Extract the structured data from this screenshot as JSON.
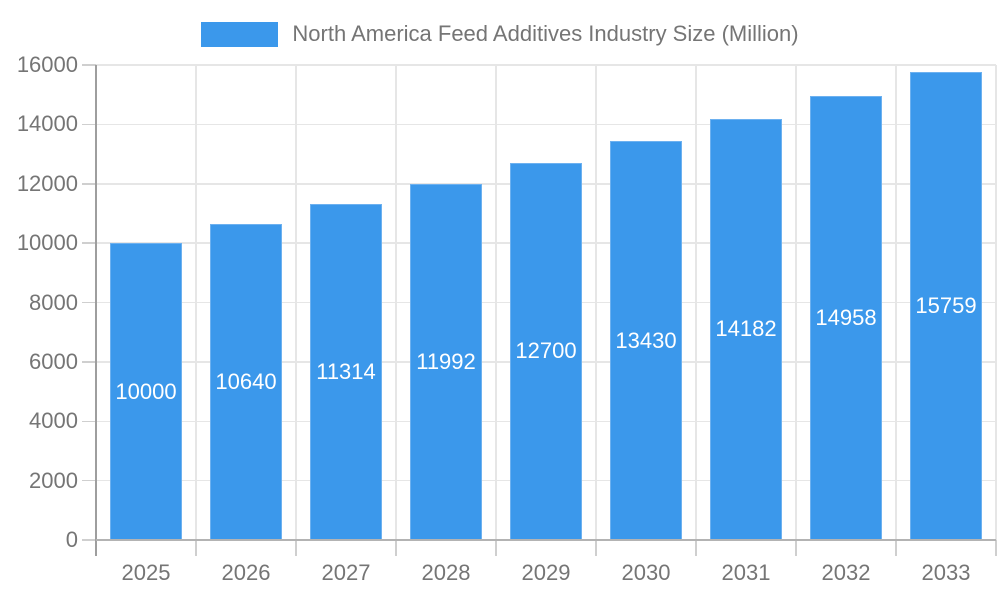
{
  "chart_data": {
    "type": "bar",
    "title": "",
    "categories": [
      "2025",
      "2026",
      "2027",
      "2028",
      "2029",
      "2030",
      "2031",
      "2032",
      "2033"
    ],
    "series": [
      {
        "name": "North America Feed Additives Industry Size (Million)",
        "values": [
          10000,
          10640,
          11314,
          11992,
          12700,
          13430,
          14182,
          14958,
          15759
        ],
        "color": "#3b98eb"
      }
    ],
    "xlabel": "",
    "ylabel": "",
    "ylim": [
      0,
      16000
    ],
    "yticks": [
      0,
      2000,
      4000,
      6000,
      8000,
      10000,
      12000,
      14000,
      16000
    ],
    "grid": true,
    "legend_position": "top",
    "value_labels_position": "inside-center"
  },
  "colors": {
    "bar_fill": "#3b98eb",
    "bar_border": "#6db1f0",
    "value_label": "#ffffff",
    "gridline": "#e6e6e6",
    "tick": "#cfcfcf",
    "y_axis_line": "#9e9e9e",
    "x_axis_line": "#b3b3b3",
    "tick_label": "#757575",
    "legend_text": "#757575",
    "background": "#ffffff"
  }
}
